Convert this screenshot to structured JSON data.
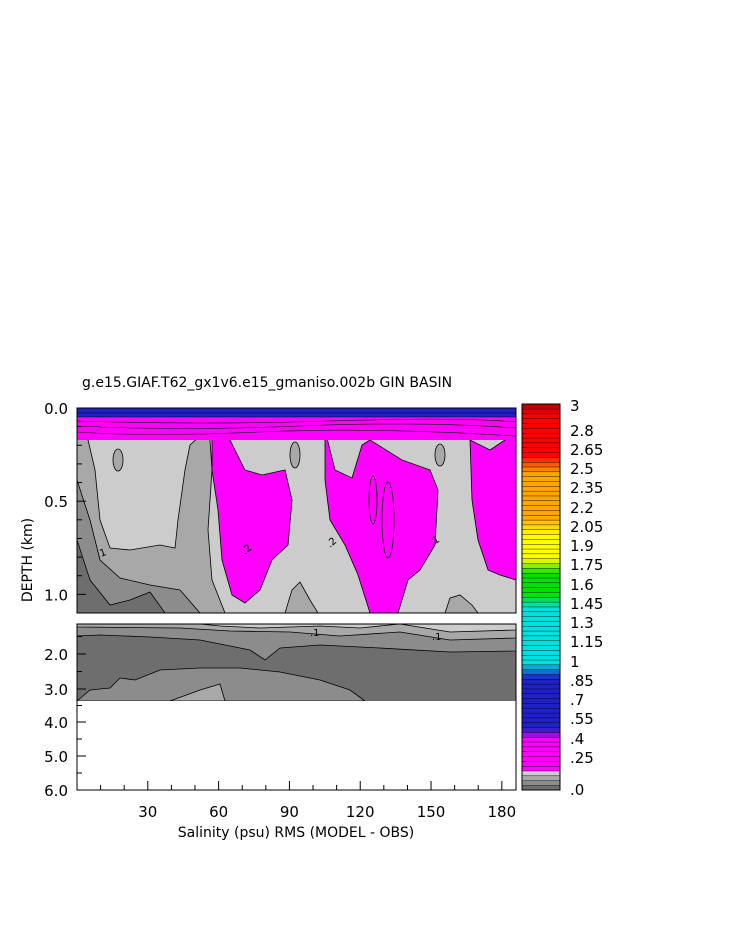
{
  "chart_data": {
    "type": "heatmap",
    "title": "g.e15.GIAF.T62_gx1v6.e15_gmaniso.002b GIN BASIN",
    "xlabel": "Salinity (psu) RMS (MODEL - OBS)",
    "ylabel": "DEPTH (km)",
    "x_ticks": [
      "30",
      "60",
      "90",
      "120",
      "150",
      "180"
    ],
    "xlim": [
      0,
      186
    ],
    "upper_panel": {
      "ylim": [
        0.0,
        1.1
      ],
      "y_ticks": [
        "0.0",
        "0.5",
        "1.0"
      ]
    },
    "lower_panel": {
      "ylim": [
        1.2,
        6.0
      ],
      "y_ticks": [
        "2.0",
        "3.0",
        "4.0",
        "5.0",
        "6.0"
      ],
      "data_bottom_depth": 3.35
    },
    "contour_labels": [
      ".1",
      ".1",
      ".2",
      ".2",
      ".1",
      ".1"
    ],
    "colorbar": {
      "labels": [
        "3",
        "2.8",
        "2.65",
        "2.5",
        "2.35",
        "2.2",
        "2.05",
        "1.9",
        "1.75",
        "1.6",
        "1.45",
        "1.3",
        "1.15",
        "1",
        ".85",
        ".7",
        ".55",
        ".4",
        ".25",
        ".0"
      ],
      "colors": {
        "gray_darkest": "#6e6e6e",
        "gray_dark": "#8c8c8c",
        "gray_mid": "#a8a8a8",
        "gray_light": "#cccccc",
        "magenta": "#ff00ff",
        "blue": "#2020c8",
        "cyan": "#00e0e0",
        "green": "#00e000",
        "yellow": "#ffff00",
        "orange": "#ffa500",
        "red": "#ff0000",
        "dark_red": "#b00000"
      }
    }
  }
}
